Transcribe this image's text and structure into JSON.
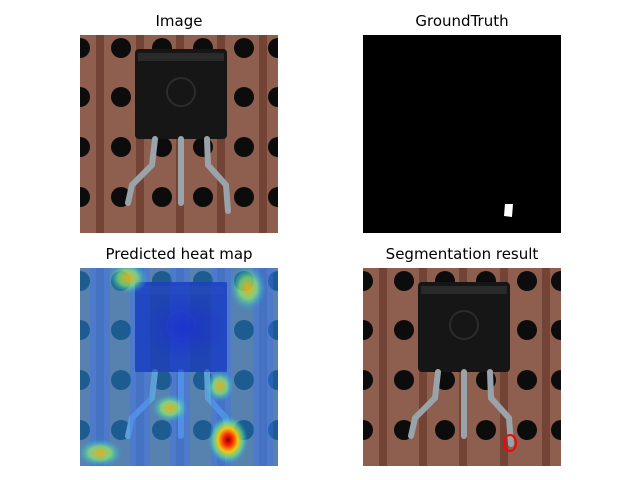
{
  "figure": {
    "panels": [
      {
        "id": "image",
        "title": "Image"
      },
      {
        "id": "ground_truth",
        "title": "GroundTruth"
      },
      {
        "id": "heatmap",
        "title": "Predicted heat map"
      },
      {
        "id": "segmentation",
        "title": "Segmentation result"
      }
    ]
  },
  "colors": {
    "board": "#8e5f4e",
    "strip": "#6e3f33",
    "hole": "#0c0c0c",
    "component": "#161616",
    "lead": "#9aa3a9",
    "mask_bg": "#000000",
    "mask_fg": "#ffffff",
    "contour": "#ff0000"
  }
}
